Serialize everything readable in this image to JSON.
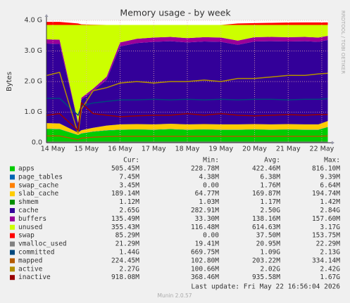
{
  "chart_data": {
    "type": "area",
    "title": "Memory usage - by week",
    "y_label": "Bytes",
    "side_text": "RRDTOOL / TOBI OETIKER",
    "last_update": "Last update: Fri May 22 16:56:04 2026",
    "footer": "Munin 2.0.57",
    "stats_headers": [
      "Cur:",
      "Min:",
      "Avg:",
      "Max:"
    ],
    "grid": true,
    "xlim": [
      13.81,
      22.19
    ],
    "xticks": [
      {
        "value": 14,
        "label": "14 May"
      },
      {
        "value": 15,
        "label": "15 May"
      },
      {
        "value": 16,
        "label": "16 May"
      },
      {
        "value": 17,
        "label": "17 May"
      },
      {
        "value": 18,
        "label": "18 May"
      },
      {
        "value": 19,
        "label": "19 May"
      },
      {
        "value": 20,
        "label": "20 May"
      },
      {
        "value": 21,
        "label": "21 May"
      },
      {
        "value": 22,
        "label": "22 May"
      }
    ],
    "ylim": [
      0,
      4
    ],
    "yticks": [
      {
        "value": 0,
        "label": "0.0"
      },
      {
        "value": 1,
        "label": "1.0 G"
      },
      {
        "value": 2,
        "label": "2.0 G"
      },
      {
        "value": 3,
        "label": "3.0 G"
      },
      {
        "value": 4,
        "label": "4.0 G"
      }
    ],
    "x": [
      13.82,
      14.2,
      14.75,
      14.85,
      15.2,
      15.6,
      16.0,
      16.5,
      17.0,
      17.5,
      18.0,
      18.5,
      19.0,
      19.5,
      20.0,
      20.5,
      21.0,
      21.5,
      21.9,
      22.18
    ],
    "series": [
      {
        "name": "apps",
        "color": "#00cc00",
        "stacked": true,
        "stats": [
          "505.45M",
          "228.78M",
          "422.46M",
          "816.10M"
        ],
        "values": [
          0.45,
          0.44,
          0.25,
          0.3,
          0.36,
          0.4,
          0.42,
          0.43,
          0.42,
          0.44,
          0.42,
          0.43,
          0.42,
          0.42,
          0.43,
          0.42,
          0.43,
          0.42,
          0.42,
          0.51
        ]
      },
      {
        "name": "page_tables",
        "color": "#0066b3",
        "stacked": true,
        "stats": [
          "7.45M",
          "4.38M",
          "6.38M",
          "9.39M"
        ],
        "values": [
          0.007,
          0.007,
          0.007,
          0.007,
          0.007,
          0.007,
          0.007,
          0.007,
          0.007,
          0.007,
          0.007,
          0.007,
          0.007,
          0.007,
          0.007,
          0.007,
          0.007,
          0.007,
          0.007,
          0.007
        ]
      },
      {
        "name": "swap_cache",
        "color": "#ff8000",
        "stacked": true,
        "stats": [
          "3.45M",
          "0.00",
          "1.76M",
          "6.64M"
        ],
        "values": [
          0.002,
          0.002,
          0.002,
          0.002,
          0.002,
          0.002,
          0.002,
          0.002,
          0.002,
          0.002,
          0.002,
          0.002,
          0.002,
          0.002,
          0.002,
          0.002,
          0.002,
          0.002,
          0.002,
          0.002
        ]
      },
      {
        "name": "slab_cache",
        "color": "#ffcc00",
        "stacked": true,
        "stats": [
          "189.14M",
          "64.77M",
          "169.87M",
          "194.74M"
        ],
        "values": [
          0.18,
          0.18,
          0.07,
          0.1,
          0.12,
          0.15,
          0.17,
          0.17,
          0.17,
          0.17,
          0.17,
          0.17,
          0.17,
          0.17,
          0.17,
          0.17,
          0.17,
          0.17,
          0.17,
          0.19
        ]
      },
      {
        "name": "shmem",
        "color": "#008f00",
        "stacked": true,
        "stats": [
          "1.12M",
          "1.03M",
          "1.17M",
          "1.42M"
        ],
        "values": [
          0.001,
          0.001,
          0.001,
          0.001,
          0.001,
          0.001,
          0.001,
          0.001,
          0.001,
          0.001,
          0.001,
          0.001,
          0.001,
          0.001,
          0.001,
          0.001,
          0.001,
          0.001,
          0.001,
          0.001
        ]
      },
      {
        "name": "cache",
        "color": "#330099",
        "stacked": true,
        "stats": [
          "2.65G",
          "282.91M",
          "2.50G",
          "2.84G"
        ],
        "values": [
          2.6,
          2.6,
          0.3,
          1.0,
          1.2,
          1.5,
          2.55,
          2.65,
          2.7,
          2.7,
          2.68,
          2.7,
          2.7,
          2.6,
          2.7,
          2.72,
          2.7,
          2.72,
          2.7,
          2.65
        ]
      },
      {
        "name": "buffers",
        "color": "#990099",
        "stacked": true,
        "stats": [
          "135.49M",
          "33.30M",
          "138.16M",
          "157.60M"
        ],
        "values": [
          0.14,
          0.14,
          0.03,
          0.06,
          0.08,
          0.1,
          0.13,
          0.14,
          0.14,
          0.14,
          0.14,
          0.14,
          0.14,
          0.14,
          0.14,
          0.14,
          0.14,
          0.14,
          0.14,
          0.135
        ]
      },
      {
        "name": "unused",
        "color": "#ccff00",
        "stacked": true,
        "stats": [
          "355.43M",
          "116.48M",
          "614.63M",
          "3.17G"
        ],
        "values": [
          0.47,
          0.48,
          3.19,
          2.38,
          2.08,
          1.69,
          0.57,
          0.45,
          0.41,
          0.39,
          0.43,
          0.4,
          0.41,
          0.51,
          0.4,
          0.39,
          0.4,
          0.39,
          0.41,
          0.355
        ]
      },
      {
        "name": "swap",
        "color": "#ff0000",
        "stacked": true,
        "stats": [
          "85.29M",
          "0.00",
          "37.50M",
          "153.75M"
        ],
        "values": [
          0.1,
          0.1,
          0.05,
          0.02,
          0.01,
          0.0,
          0.0,
          0.0,
          0.0,
          0.0,
          0.0,
          0.0,
          0.0,
          0.05,
          0.06,
          0.07,
          0.08,
          0.085,
          0.085,
          0.085
        ]
      },
      {
        "name": "vmalloc_used",
        "color": "#808080",
        "stacked": false,
        "stats": [
          "21.29M",
          "19.41M",
          "20.95M",
          "22.29M"
        ],
        "values": [
          0.02,
          0.02,
          0.02,
          0.02,
          0.02,
          0.02,
          0.02,
          0.02,
          0.02,
          0.02,
          0.02,
          0.02,
          0.02,
          0.02,
          0.02,
          0.02,
          0.02,
          0.02,
          0.02,
          0.02
        ]
      },
      {
        "name": "committed",
        "color": "#00487d",
        "stacked": false,
        "stats": [
          "1.44G",
          "669.75M",
          "1.09G",
          "2.13G"
        ],
        "values": [
          1.45,
          1.45,
          0.9,
          1.2,
          1.3,
          1.35,
          1.4,
          1.4,
          1.42,
          1.4,
          1.42,
          1.4,
          1.42,
          1.4,
          1.42,
          1.42,
          1.4,
          1.42,
          1.42,
          1.44
        ]
      },
      {
        "name": "mapped",
        "color": "#b35a00",
        "stacked": false,
        "stats": [
          "224.45M",
          "102.80M",
          "203.22M",
          "334.14M"
        ],
        "values": [
          0.22,
          0.22,
          0.1,
          0.15,
          0.18,
          0.2,
          0.21,
          0.21,
          0.21,
          0.21,
          0.21,
          0.21,
          0.21,
          0.21,
          0.21,
          0.21,
          0.21,
          0.21,
          0.21,
          0.22
        ]
      },
      {
        "name": "active",
        "color": "#b38f00",
        "stacked": false,
        "stats": [
          "2.27G",
          "100.66M",
          "2.02G",
          "2.42G"
        ],
        "values": [
          2.2,
          2.3,
          0.3,
          1.1,
          1.7,
          1.8,
          1.95,
          2.0,
          1.95,
          2.0,
          2.0,
          2.05,
          2.0,
          2.1,
          2.1,
          2.15,
          2.2,
          2.2,
          2.25,
          2.27
        ]
      },
      {
        "name": "inactive",
        "color": "#990000",
        "stacked": false,
        "stats": [
          "918.08M",
          "368.46M",
          "935.58M",
          "1.67G"
        ],
        "values": [
          0.9,
          0.95,
          0.4,
          1.3,
          0.95,
          0.9,
          0.85,
          0.88,
          0.9,
          0.9,
          0.95,
          0.9,
          0.95,
          0.9,
          0.88,
          0.9,
          0.92,
          0.9,
          0.92,
          0.92
        ]
      }
    ]
  }
}
